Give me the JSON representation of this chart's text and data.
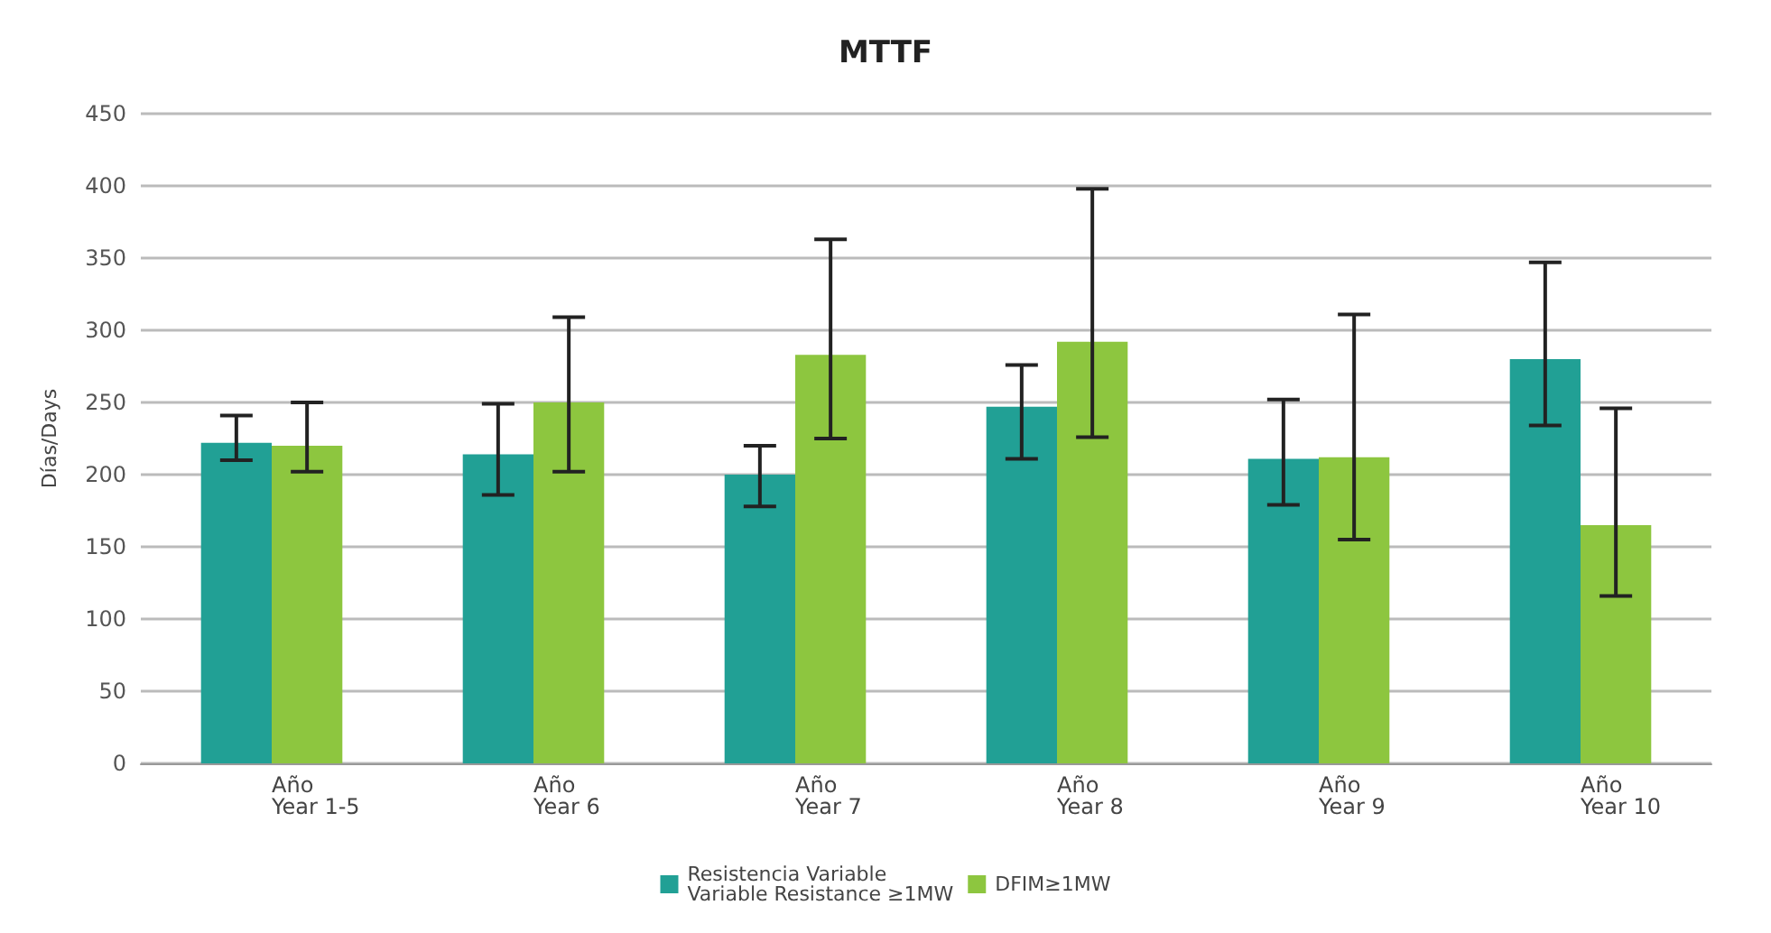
{
  "chart_data": {
    "type": "bar",
    "title": "MTTF",
    "ylabel": "Días/Days",
    "categories": [
      "Año\nYear 1-5",
      "Año\nYear 6",
      "Año\nYear 7",
      "Año\nYear 8",
      "Año\nYear 9",
      "Año\nYear 10"
    ],
    "series": [
      {
        "name": "Resistencia Variable\nVariable Resistance ≥1MW",
        "color": "#21a095",
        "values": [
          222,
          214,
          200,
          247,
          211,
          280
        ],
        "errors": [
          [
            210,
            241
          ],
          [
            186,
            249
          ],
          [
            178,
            220
          ],
          [
            211,
            276
          ],
          [
            179,
            252
          ],
          [
            234,
            347
          ]
        ]
      },
      {
        "name": "DFIM≥1MW",
        "color": "#8dc63f",
        "values": [
          220,
          250,
          283,
          292,
          212,
          165
        ],
        "errors": [
          [
            202,
            250
          ],
          [
            202,
            309
          ],
          [
            225,
            363
          ],
          [
            226,
            398
          ],
          [
            155,
            311
          ],
          [
            116,
            246
          ]
        ]
      }
    ],
    "ylim": [
      0,
      450
    ],
    "yticks": [
      0,
      50,
      100,
      150,
      200,
      250,
      300,
      350,
      400,
      450
    ],
    "grid": "y",
    "legend": "bottom"
  }
}
